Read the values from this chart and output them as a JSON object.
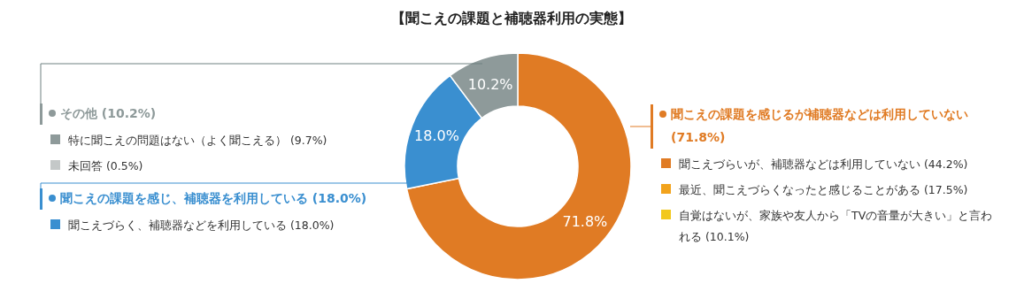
{
  "chart_data": {
    "type": "donut",
    "title": "【聞こえの課題と補聴器利用の実態】",
    "categories": [
      "聞こえの課題を感じるが補聴器などは利用していない (71.8%)",
      "聞こえの課題を感じ、補聴器を利用している (18.0%)",
      "その他 (10.2%)"
    ],
    "values": [
      71.8,
      18.0,
      10.2
    ],
    "colors": [
      "#e07b24",
      "#3a8fd0",
      "#8e9a9a"
    ],
    "legend": "right",
    "value_labels": [
      "71.8%",
      "18.0%",
      "10.2%"
    ],
    "annotations": [
      "聞こえづらいが、補聴器などは利用していない (44.2%)",
      "最近、聞こえづらくなったと感じることがある (17.5%)",
      "自覚はないが、家族や友人から「TVの音量が大きい」と言われる (10.1%)",
      "聞こえづらく、補聴器などを利用している (18.0%)",
      "特に聞こえの問題はない（よく聞こえる） (9.7%)",
      "未回答 (0.5%)"
    ]
  }
}
